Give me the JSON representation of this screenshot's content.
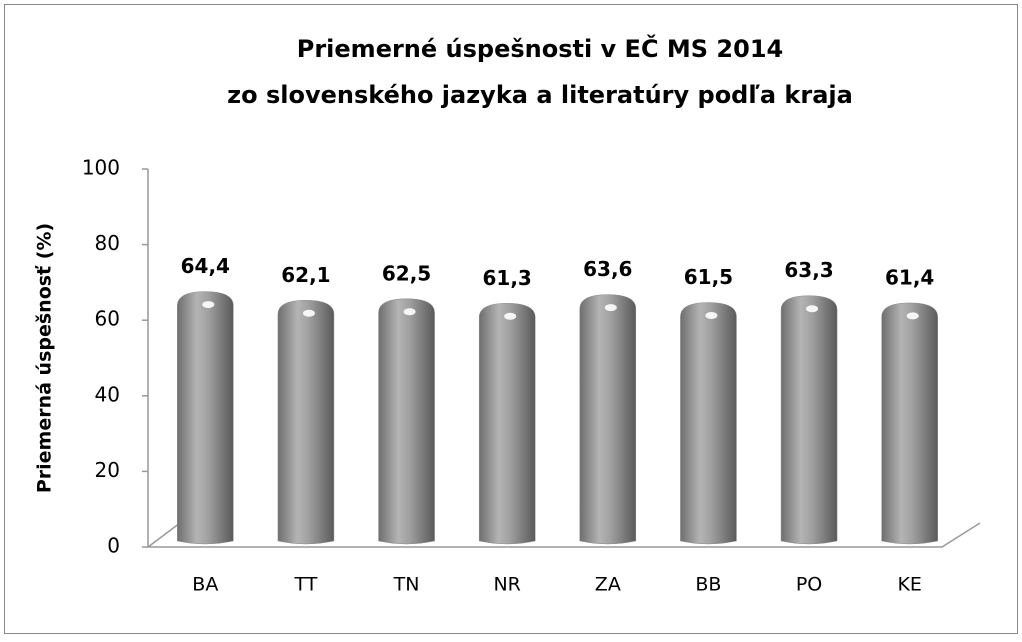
{
  "chart_data": {
    "type": "bar",
    "title": [
      "Priemerné úspešnosti v EČ MS 2014",
      "zo slovenského jazyka a literatúry podľa kraja"
    ],
    "y_label": "Priemerná úspešnosť (%)",
    "categories": [
      "BA",
      "TT",
      "TN",
      "NR",
      "ZA",
      "BB",
      "PO",
      "KE"
    ],
    "values": [
      64.4,
      62.1,
      62.5,
      61.3,
      63.6,
      61.5,
      63.3,
      61.4
    ],
    "value_labels": [
      "64,4",
      "62,1",
      "62,5",
      "61,3",
      "63,6",
      "61,5",
      "63,3",
      "61,4"
    ],
    "color": "#8c8c8c",
    "ylim": [
      0,
      100
    ],
    "yticks": [
      0,
      20,
      40,
      60,
      80,
      100
    ],
    "grid": false
  }
}
